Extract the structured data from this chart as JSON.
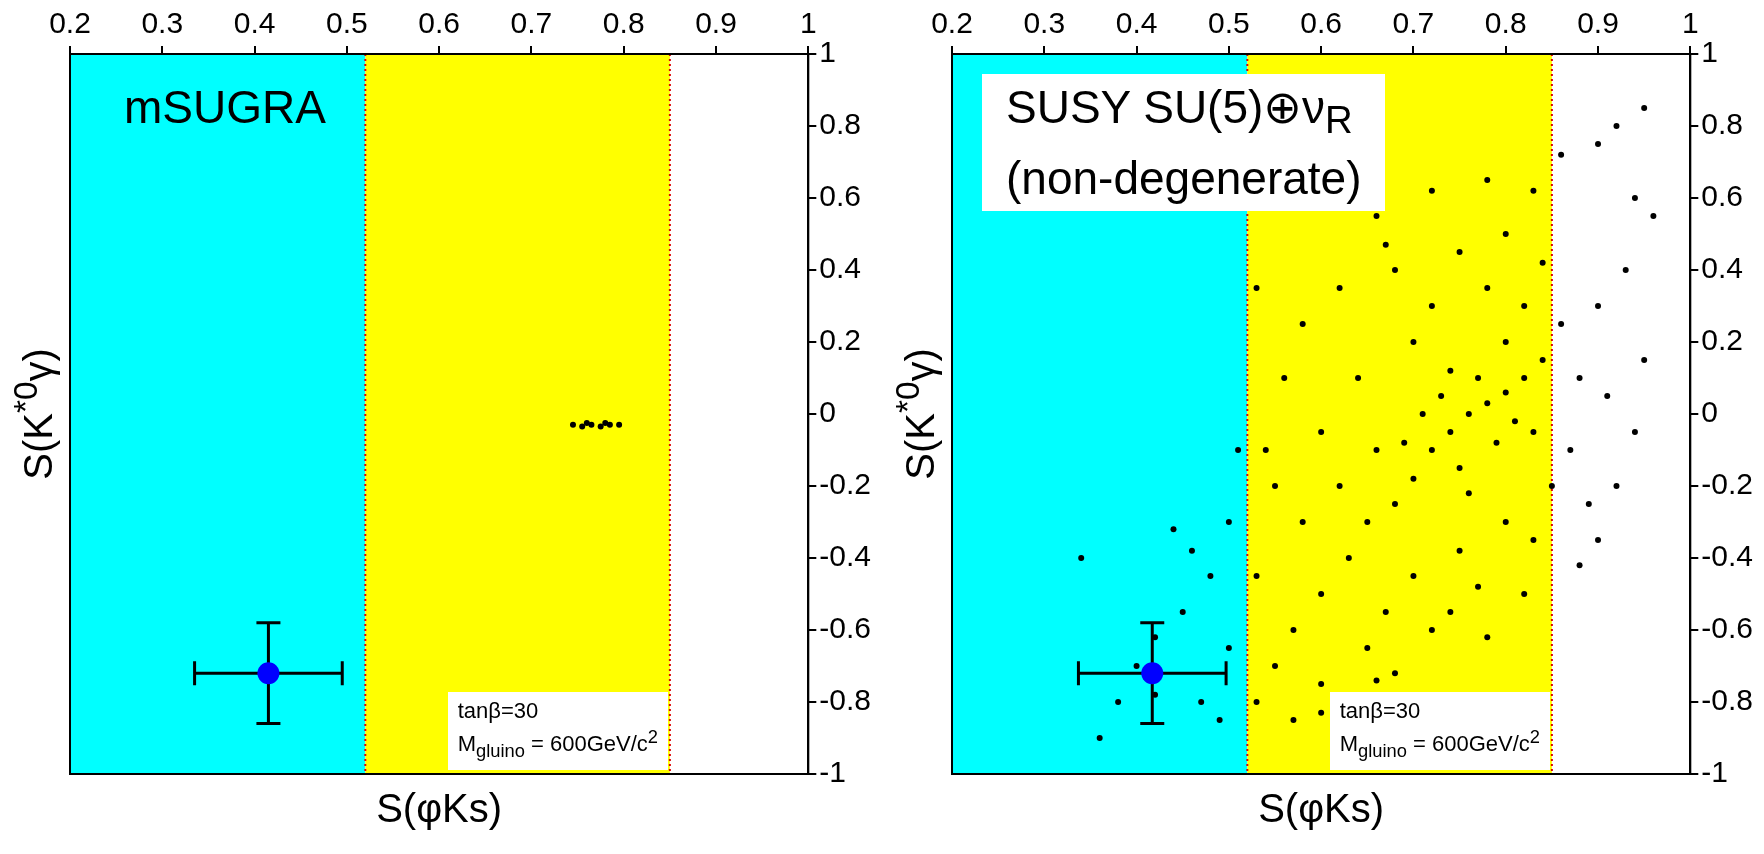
{
  "chart_data": [
    {
      "type": "scatter",
      "title": "mSUGRA",
      "xlabel": "S(φKs)",
      "ylabel": "S(K$^{*0}$γ)",
      "xlim": [
        0.2,
        1
      ],
      "xticks": [
        0.2,
        0.3,
        0.4,
        0.5,
        0.6,
        0.7,
        0.8,
        0.9,
        1
      ],
      "ylim": [
        -1,
        1
      ],
      "yticks": [
        -1,
        -0.8,
        -0.6,
        -0.4,
        -0.2,
        0,
        0.2,
        0.4,
        0.6,
        0.8,
        1
      ],
      "grid": false,
      "legend": false,
      "bands": [
        {
          "axis": "x",
          "from": 0.2,
          "to": 0.52,
          "color": "#00ffff"
        },
        {
          "axis": "x",
          "from": 0.52,
          "to": 0.85,
          "color": "#ffff00"
        }
      ],
      "ref_lines": [
        {
          "axis": "x",
          "value": 0.52,
          "color": "#dd0000",
          "line_style": "dotted"
        },
        {
          "axis": "x",
          "value": 0.85,
          "color": "#dd0000",
          "line_style": "dotted"
        }
      ],
      "annotations": [
        "tanβ=30",
        "M$_{gluino}$ = 600GeV/c$^{2}$"
      ],
      "series": [
        {
          "color": "#000000",
          "marker": "circle",
          "x": [
            0.745,
            0.755,
            0.76,
            0.765,
            0.775,
            0.78,
            0.785,
            0.795
          ],
          "values": [
            -0.03,
            -0.035,
            -0.025,
            -0.03,
            -0.035,
            -0.025,
            -0.03,
            -0.03
          ]
        },
        {
          "color": "#0000ff",
          "marker": "circle",
          "x": [
            0.415
          ],
          "values": [
            -0.72
          ],
          "errors": [
            0.14
          ],
          "xerrors": [
            0.08
          ]
        }
      ]
    },
    {
      "type": "scatter",
      "title": "SUSY SU(5)⊕ν$_{R}$",
      "subtitle": "(non-degenerate)",
      "xlabel": "S(φKs)",
      "ylabel": "S(K$^{*0}$γ)",
      "xlim": [
        0.2,
        1
      ],
      "xticks": [
        0.2,
        0.3,
        0.4,
        0.5,
        0.6,
        0.7,
        0.8,
        0.9,
        1
      ],
      "ylim": [
        -1,
        1
      ],
      "yticks": [
        -1,
        -0.8,
        -0.6,
        -0.4,
        -0.2,
        0,
        0.2,
        0.4,
        0.6,
        0.8,
        1
      ],
      "grid": false,
      "legend": false,
      "bands": [
        {
          "axis": "x",
          "from": 0.2,
          "to": 0.52,
          "color": "#00ffff"
        },
        {
          "axis": "x",
          "from": 0.52,
          "to": 0.85,
          "color": "#ffff00"
        }
      ],
      "ref_lines": [
        {
          "axis": "x",
          "value": 0.52,
          "color": "#dd0000",
          "line_style": "dotted"
        },
        {
          "axis": "x",
          "value": 0.85,
          "color": "#dd0000",
          "line_style": "dotted"
        }
      ],
      "annotations": [
        "tanβ=30",
        "M$_{gluino}$ = 600GeV/c$^{2}$"
      ],
      "series": [
        {
          "color": "#000000",
          "marker": "circle",
          "x": [
            0.72,
            0.74,
            0.76,
            0.78,
            0.8,
            0.75,
            0.79,
            0.82,
            0.7,
            0.73,
            0.77,
            0.81,
            0.68,
            0.84,
            0.71,
            0.76,
            0.8,
            0.74,
            0.83,
            0.69,
            0.65,
            0.66,
            0.63,
            0.7,
            0.72,
            0.78,
            0.82,
            0.86,
            0.88,
            0.87,
            0.85,
            0.8,
            0.75,
            0.7,
            0.67,
            0.62,
            0.6,
            0.64,
            0.68,
            0.75,
            0.8,
            0.84,
            0.9,
            0.91,
            0.89,
            0.83,
            0.77,
            0.72,
            0.65,
            0.6,
            0.58,
            0.57,
            0.55,
            0.6,
            0.68,
            0.74,
            0.55,
            0.56,
            0.58,
            0.62,
            0.66,
            0.72,
            0.78,
            0.83,
            0.86,
            0.9,
            0.92,
            0.95,
            0.94,
            0.96,
            0.93,
            0.95,
            0.94,
            0.92,
            0.9,
            0.88,
            0.82,
            0.78,
            0.66,
            0.6,
            0.57,
            0.53,
            0.53,
            0.54,
            0.53,
            0.67,
            0.5,
            0.48,
            0.45,
            0.42,
            0.4,
            0.38,
            0.36,
            0.46,
            0.5,
            0.47,
            0.44,
            0.42,
            0.34,
            0.51,
            0.49
          ],
          "values": [
            -0.1,
            -0.05,
            0,
            0.03,
            0.06,
            -0.15,
            -0.08,
            0.1,
            -0.18,
            0.05,
            0.1,
            -0.02,
            -0.25,
            0.15,
            0,
            -0.22,
            0.2,
            0.12,
            -0.05,
            -0.08,
            -0.3,
            -0.1,
            -0.4,
            0.2,
            0.3,
            0.35,
            0.3,
            0.25,
            0.1,
            -0.1,
            -0.2,
            -0.3,
            -0.38,
            -0.45,
            -0.55,
            -0.2,
            -0.05,
            0.1,
            0.4,
            0.45,
            0.5,
            0.42,
            0.3,
            0.05,
            -0.25,
            -0.35,
            -0.48,
            -0.6,
            -0.65,
            -0.5,
            -0.3,
            -0.6,
            -0.7,
            -0.75,
            -0.72,
            -0.55,
            -0.2,
            0.1,
            0.25,
            0.35,
            0.55,
            0.62,
            0.65,
            0.62,
            0.72,
            0.75,
            0.8,
            0.85,
            0.6,
            0.55,
            0.4,
            0.15,
            -0.05,
            -0.2,
            -0.35,
            -0.42,
            -0.5,
            -0.62,
            -0.74,
            -0.83,
            -0.85,
            -0.8,
            -0.45,
            -0.1,
            0.35,
            0.47,
            -0.3,
            -0.45,
            -0.55,
            -0.62,
            -0.7,
            -0.8,
            -0.9,
            -0.38,
            -0.65,
            -0.8,
            -0.32,
            -0.78,
            -0.4,
            -0.1,
            -0.85
          ]
        },
        {
          "color": "#0000ff",
          "marker": "circle",
          "x": [
            0.417
          ],
          "values": [
            -0.72
          ],
          "errors": [
            0.14
          ],
          "xerrors": [
            0.08
          ]
        }
      ]
    }
  ]
}
